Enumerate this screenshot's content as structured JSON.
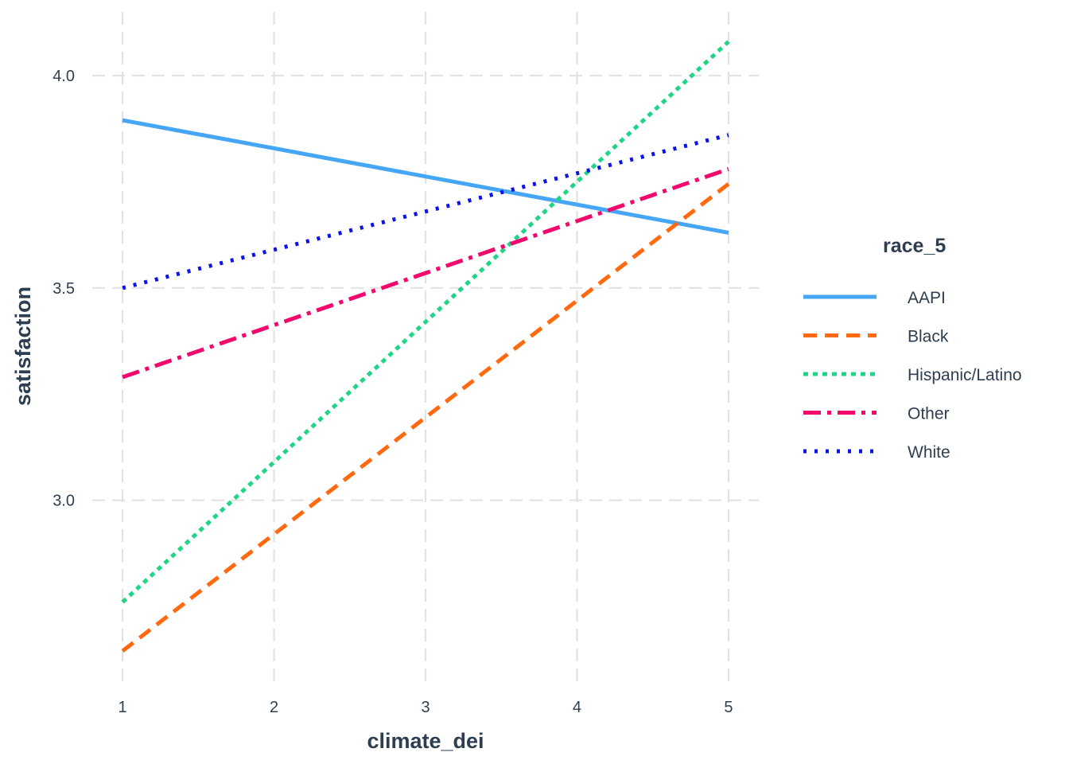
{
  "chart_data": {
    "type": "line",
    "xlabel": "climate_dei",
    "ylabel": "satisfaction",
    "xlim": [
      0.8,
      5.2
    ],
    "ylim": [
      2.57,
      4.15
    ],
    "x_ticks": [
      1,
      2,
      3,
      4,
      5
    ],
    "x_tick_labels": [
      "1",
      "2",
      "3",
      "4",
      "5"
    ],
    "y_ticks": [
      3.0,
      3.5,
      4.0
    ],
    "y_tick_labels": [
      "3.0",
      "3.5",
      "4.0"
    ],
    "grid": true,
    "legend_title": "race_5",
    "legend_position": "right",
    "series": [
      {
        "name": "AAPI",
        "color": "#45a6f5",
        "linetype": "solid",
        "x": [
          1,
          5
        ],
        "y": [
          3.895,
          3.63
        ]
      },
      {
        "name": "Black",
        "color": "#ff6a10",
        "linetype": "dashed",
        "x": [
          1,
          5
        ],
        "y": [
          2.645,
          3.745
        ]
      },
      {
        "name": "Hispanic/Latino",
        "color": "#22d488",
        "linetype": "dotted",
        "x": [
          1,
          5
        ],
        "y": [
          2.76,
          4.08
        ]
      },
      {
        "name": "Other",
        "color": "#f2086c",
        "linetype": "dotdash",
        "x": [
          1,
          5
        ],
        "y": [
          3.29,
          3.78
        ]
      },
      {
        "name": "White",
        "color": "#0a14e6",
        "linetype": "dotted-fine",
        "x": [
          1,
          5
        ],
        "y": [
          3.5,
          3.86
        ]
      }
    ]
  }
}
